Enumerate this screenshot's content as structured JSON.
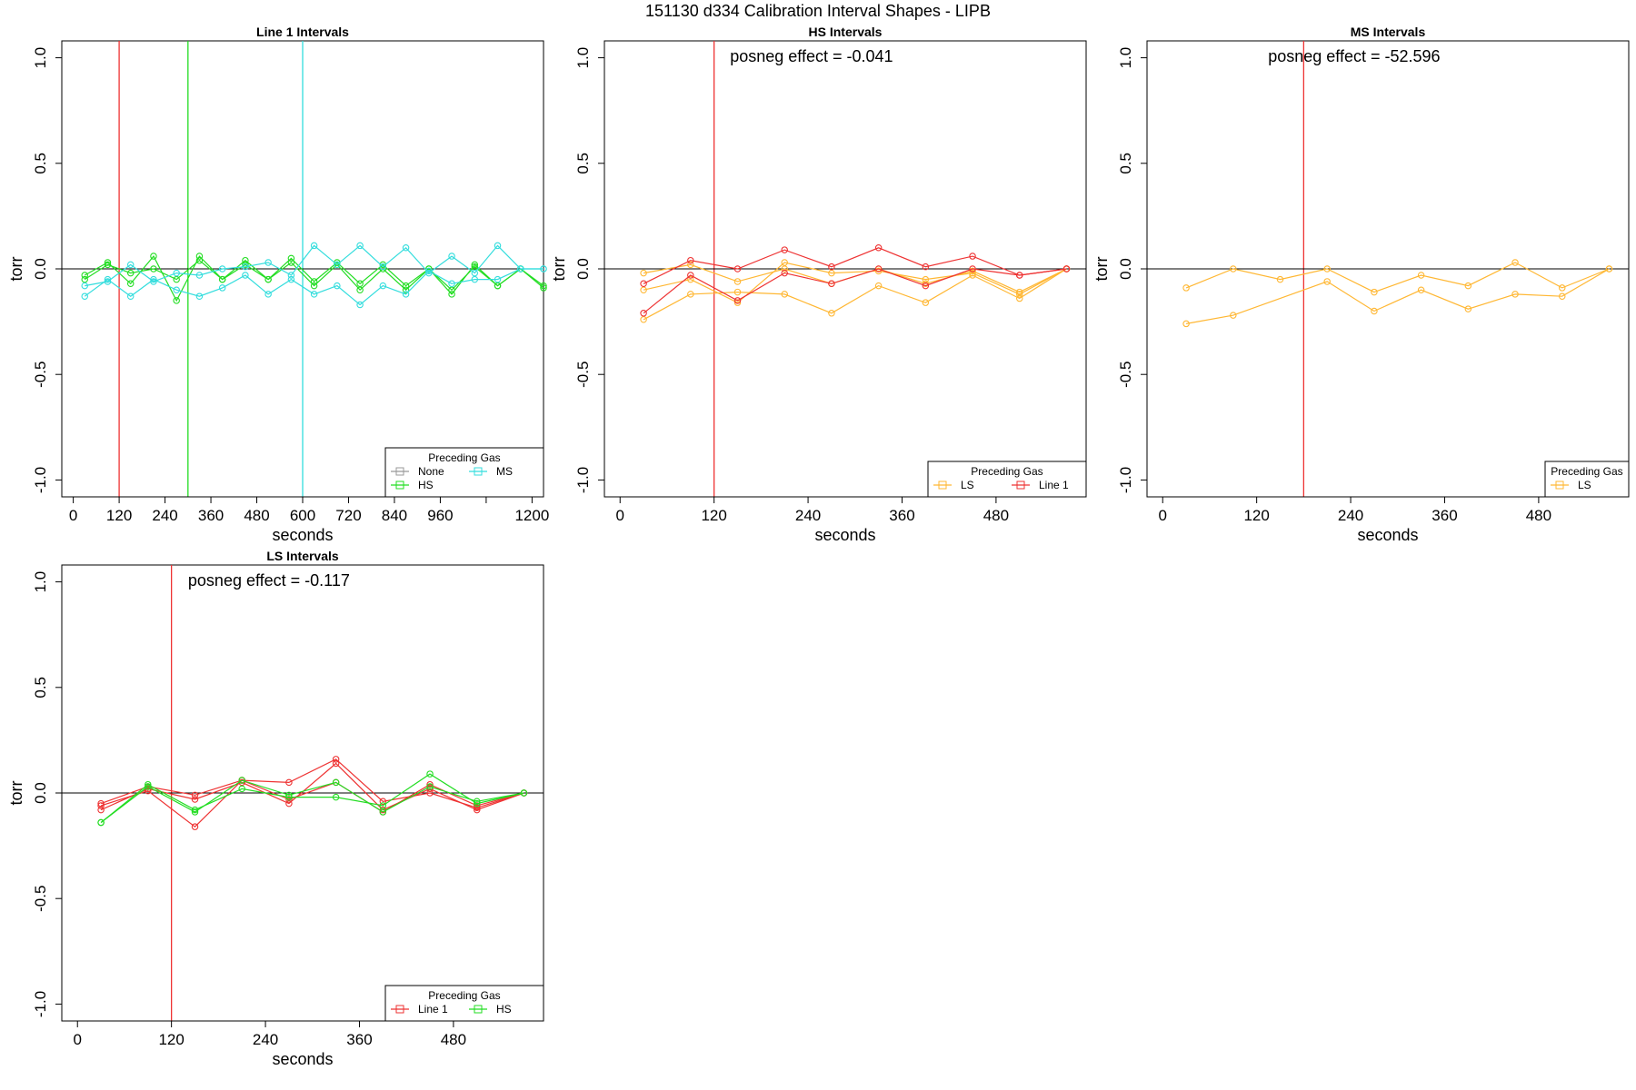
{
  "figure_title": "151130   d334   Calibration Interval Shapes - LIPB",
  "colors": {
    "None": "#999999",
    "HS": "#22dd22",
    "MS": "#33dddd",
    "LS": "#ffb733",
    "Line 1": "#ee3333",
    "axis": "#000000"
  },
  "chart_data": [
    {
      "type": "line",
      "title": "Line 1 Intervals",
      "xlabel": "seconds",
      "ylabel": "torr",
      "xlim": [
        -30,
        1230
      ],
      "ylim": [
        -1.08,
        1.08
      ],
      "xticks": [
        0,
        120,
        240,
        360,
        480,
        600,
        720,
        840,
        960,
        1080,
        1200
      ],
      "xtick_labels": [
        "0",
        "120",
        "240",
        "360",
        "480",
        "600",
        "720",
        "840",
        "960",
        "",
        "1200"
      ],
      "yticks": [
        -1.0,
        -0.5,
        0.0,
        0.5,
        1.0
      ],
      "ytick_labels": [
        "-1.0",
        "-0.5",
        "0.0",
        "0.5",
        "1.0"
      ],
      "hline": 0,
      "vlines": [
        {
          "x": 120,
          "color_key": "Line 1"
        },
        {
          "x": 300,
          "color_key": "HS"
        },
        {
          "x": 600,
          "color_key": "MS"
        }
      ],
      "annotation": "",
      "legend": {
        "title": "Preceding Gas",
        "entries": [
          {
            "label": "None",
            "color_key": "None"
          },
          {
            "label": "MS",
            "color_key": "MS"
          },
          {
            "label": "HS",
            "color_key": "HS"
          }
        ],
        "ncol": 2,
        "position": "bottom-right"
      },
      "series": [
        {
          "name": "HS",
          "color_key": "HS",
          "x": [
            30,
            90,
            150,
            210,
            270,
            330,
            390,
            450,
            510,
            570,
            630,
            690,
            750,
            810,
            870,
            930,
            990,
            1050,
            1110,
            1170,
            1230
          ],
          "y": [
            -0.03,
            0.03,
            -0.07,
            0.06,
            -0.15,
            0.06,
            -0.05,
            0.04,
            -0.05,
            0.05,
            -0.06,
            0.03,
            -0.07,
            0.02,
            -0.08,
            0.0,
            -0.12,
            0.02,
            -0.08,
            0.0,
            -0.08
          ]
        },
        {
          "name": "HS",
          "color_key": "HS",
          "x": [
            30,
            90,
            150,
            210,
            270,
            330,
            390,
            450,
            510,
            570,
            630,
            690,
            750,
            810,
            870,
            930,
            990,
            1050,
            1110,
            1170,
            1230
          ],
          "y": [
            -0.05,
            0.02,
            -0.02,
            0.0,
            -0.05,
            0.04,
            -0.05,
            0.02,
            -0.05,
            0.03,
            -0.08,
            0.02,
            -0.1,
            0.0,
            -0.1,
            0.0,
            -0.1,
            0.01,
            -0.08,
            0.0,
            -0.09
          ]
        },
        {
          "name": "MS",
          "color_key": "MS",
          "x": [
            30,
            90,
            150,
            210,
            270,
            330,
            390,
            450,
            510,
            570,
            630,
            690,
            750,
            810,
            870,
            930,
            990,
            1050,
            1110,
            1170,
            1230
          ],
          "y": [
            -0.13,
            -0.05,
            -0.13,
            -0.05,
            -0.1,
            -0.13,
            -0.09,
            -0.03,
            -0.12,
            -0.05,
            -0.12,
            -0.08,
            -0.17,
            -0.08,
            -0.12,
            -0.01,
            -0.07,
            -0.05,
            -0.05,
            0.0,
            0.0
          ]
        },
        {
          "name": "MS",
          "color_key": "MS",
          "x": [
            30,
            90,
            150,
            210,
            270,
            330,
            390,
            450,
            510,
            570,
            630,
            690,
            750,
            810,
            870,
            930,
            990,
            1050,
            1110,
            1170,
            1230
          ],
          "y": [
            -0.08,
            -0.06,
            0.02,
            -0.06,
            -0.02,
            -0.03,
            0.0,
            0.01,
            0.03,
            -0.03,
            0.11,
            0.02,
            0.11,
            0.01,
            0.1,
            -0.02,
            0.06,
            -0.02,
            0.11,
            0.0,
            0.0
          ]
        }
      ]
    },
    {
      "type": "line",
      "title": "HS Intervals",
      "xlabel": "seconds",
      "ylabel": "torr",
      "xlim": [
        -20,
        595
      ],
      "ylim": [
        -1.08,
        1.08
      ],
      "xticks": [
        0,
        120,
        240,
        360,
        480
      ],
      "xtick_labels": [
        "0",
        "120",
        "240",
        "360",
        "480"
      ],
      "yticks": [
        -1.0,
        -0.5,
        0.0,
        0.5,
        1.0
      ],
      "ytick_labels": [
        "-1.0",
        "-0.5",
        "0.0",
        "0.5",
        "1.0"
      ],
      "hline": 0,
      "vlines": [
        {
          "x": 120,
          "color_key": "Line 1"
        }
      ],
      "annotation": "posneg effect = -0.041",
      "legend": {
        "title": "Preceding Gas",
        "entries": [
          {
            "label": "LS",
            "color_key": "LS"
          },
          {
            "label": "Line 1",
            "color_key": "Line 1"
          }
        ],
        "ncol": 2,
        "position": "bottom-right"
      },
      "series": [
        {
          "name": "LS",
          "color_key": "LS",
          "x": [
            30,
            90,
            150,
            210,
            270,
            330,
            390,
            450,
            510,
            570
          ],
          "y": [
            -0.24,
            -0.12,
            -0.11,
            -0.12,
            -0.21,
            -0.08,
            -0.16,
            -0.03,
            -0.14,
            0.0
          ]
        },
        {
          "name": "LS",
          "color_key": "LS",
          "x": [
            30,
            90,
            150,
            210,
            270,
            330,
            390,
            450,
            510,
            570
          ],
          "y": [
            -0.1,
            -0.05,
            -0.16,
            0.03,
            -0.02,
            -0.01,
            -0.05,
            -0.02,
            -0.12,
            0.0
          ]
        },
        {
          "name": "LS",
          "color_key": "LS",
          "x": [
            30,
            90,
            150,
            210,
            270,
            330,
            390,
            450,
            510,
            570
          ],
          "y": [
            -0.02,
            0.02,
            -0.06,
            0.0,
            -0.07,
            0.0,
            -0.07,
            -0.01,
            -0.11,
            0.0
          ]
        },
        {
          "name": "Line 1",
          "color_key": "Line 1",
          "x": [
            30,
            90,
            150,
            210,
            270,
            330,
            390,
            450,
            510,
            570
          ],
          "y": [
            -0.07,
            0.04,
            0.0,
            0.09,
            0.01,
            0.1,
            0.01,
            0.06,
            -0.03,
            0.0
          ]
        },
        {
          "name": "Line 1",
          "color_key": "Line 1",
          "x": [
            30,
            90,
            150,
            210,
            270,
            330,
            390,
            450,
            510,
            570
          ],
          "y": [
            -0.21,
            -0.03,
            -0.15,
            -0.02,
            -0.07,
            0.0,
            -0.08,
            0.0,
            -0.03,
            0.0
          ]
        }
      ]
    },
    {
      "type": "line",
      "title": "MS Intervals",
      "xlabel": "seconds",
      "ylabel": "torr",
      "xlim": [
        -20,
        595
      ],
      "ylim": [
        -1.08,
        1.08
      ],
      "xticks": [
        0,
        120,
        240,
        360,
        480
      ],
      "xtick_labels": [
        "0",
        "120",
        "240",
        "360",
        "480"
      ],
      "yticks": [
        -1.0,
        -0.5,
        0.0,
        0.5,
        1.0
      ],
      "ytick_labels": [
        "-1.0",
        "-0.5",
        "0.0",
        "0.5",
        "1.0"
      ],
      "hline": 0,
      "vlines": [
        {
          "x": 180,
          "color_key": "Line 1"
        }
      ],
      "annotation": "posneg effect = -52.596",
      "legend": {
        "title": "Preceding Gas",
        "entries": [
          {
            "label": "LS",
            "color_key": "LS"
          }
        ],
        "ncol": 1,
        "position": "bottom-right"
      },
      "series": [
        {
          "name": "LS",
          "color_key": "LS",
          "x": [
            30,
            90,
            210,
            270,
            330,
            390,
            450,
            510,
            570
          ],
          "y": [
            -0.26,
            -0.22,
            -0.06,
            -0.2,
            -0.1,
            -0.19,
            -0.12,
            -0.13,
            0.0
          ]
        },
        {
          "name": "LS",
          "color_key": "LS",
          "x": [
            30,
            90,
            150,
            210,
            270,
            330,
            390,
            450,
            510,
            570
          ],
          "y": [
            -0.09,
            0.0,
            -0.05,
            0.0,
            -0.11,
            -0.03,
            -0.08,
            0.03,
            -0.09,
            0.0
          ]
        }
      ]
    },
    {
      "type": "line",
      "title": "LS Intervals",
      "xlabel": "seconds",
      "ylabel": "torr",
      "xlim": [
        -20,
        595
      ],
      "ylim": [
        -1.08,
        1.08
      ],
      "xticks": [
        0,
        120,
        240,
        360,
        480
      ],
      "xtick_labels": [
        "0",
        "120",
        "240",
        "360",
        "480"
      ],
      "yticks": [
        -1.0,
        -0.5,
        0.0,
        0.5,
        1.0
      ],
      "ytick_labels": [
        "-1.0",
        "-0.5",
        "0.0",
        "0.5",
        "1.0"
      ],
      "hline": 0,
      "vlines": [
        {
          "x": 120,
          "color_key": "Line 1"
        }
      ],
      "annotation": "posneg effect = -0.117",
      "legend": {
        "title": "Preceding Gas",
        "entries": [
          {
            "label": "Line 1",
            "color_key": "Line 1"
          },
          {
            "label": "HS",
            "color_key": "HS"
          }
        ],
        "ncol": 2,
        "position": "bottom-right"
      },
      "series": [
        {
          "name": "Line 1",
          "color_key": "Line 1",
          "x": [
            30,
            90,
            150,
            210,
            270,
            330,
            390,
            450,
            510,
            570
          ],
          "y": [
            -0.06,
            0.01,
            -0.16,
            0.06,
            0.05,
            0.16,
            -0.04,
            0.0,
            -0.07,
            0.0
          ]
        },
        {
          "name": "Line 1",
          "color_key": "Line 1",
          "x": [
            30,
            90,
            150,
            210,
            270,
            330,
            390,
            450,
            510,
            570
          ],
          "y": [
            -0.08,
            0.02,
            -0.03,
            0.05,
            -0.05,
            0.14,
            -0.08,
            0.02,
            -0.08,
            0.0
          ]
        },
        {
          "name": "Line 1",
          "color_key": "Line 1",
          "x": [
            30,
            90,
            150,
            210,
            270,
            330,
            390,
            450,
            510,
            570
          ],
          "y": [
            -0.05,
            0.03,
            -0.01,
            0.06,
            -0.03,
            0.05,
            -0.09,
            0.04,
            -0.06,
            0.0
          ]
        },
        {
          "name": "HS",
          "color_key": "HS",
          "x": [
            30,
            90,
            150,
            210,
            270,
            330,
            390,
            450,
            510,
            570
          ],
          "y": [
            -0.14,
            0.04,
            -0.08,
            0.02,
            -0.02,
            -0.02,
            -0.06,
            0.09,
            -0.05,
            0.0
          ]
        },
        {
          "name": "HS",
          "color_key": "HS",
          "x": [
            30,
            90,
            150,
            210,
            270,
            330,
            390,
            450,
            510,
            570
          ],
          "y": [
            -0.14,
            0.03,
            -0.09,
            0.06,
            -0.01,
            0.05,
            -0.09,
            0.03,
            -0.04,
            0.0
          ]
        }
      ]
    }
  ]
}
